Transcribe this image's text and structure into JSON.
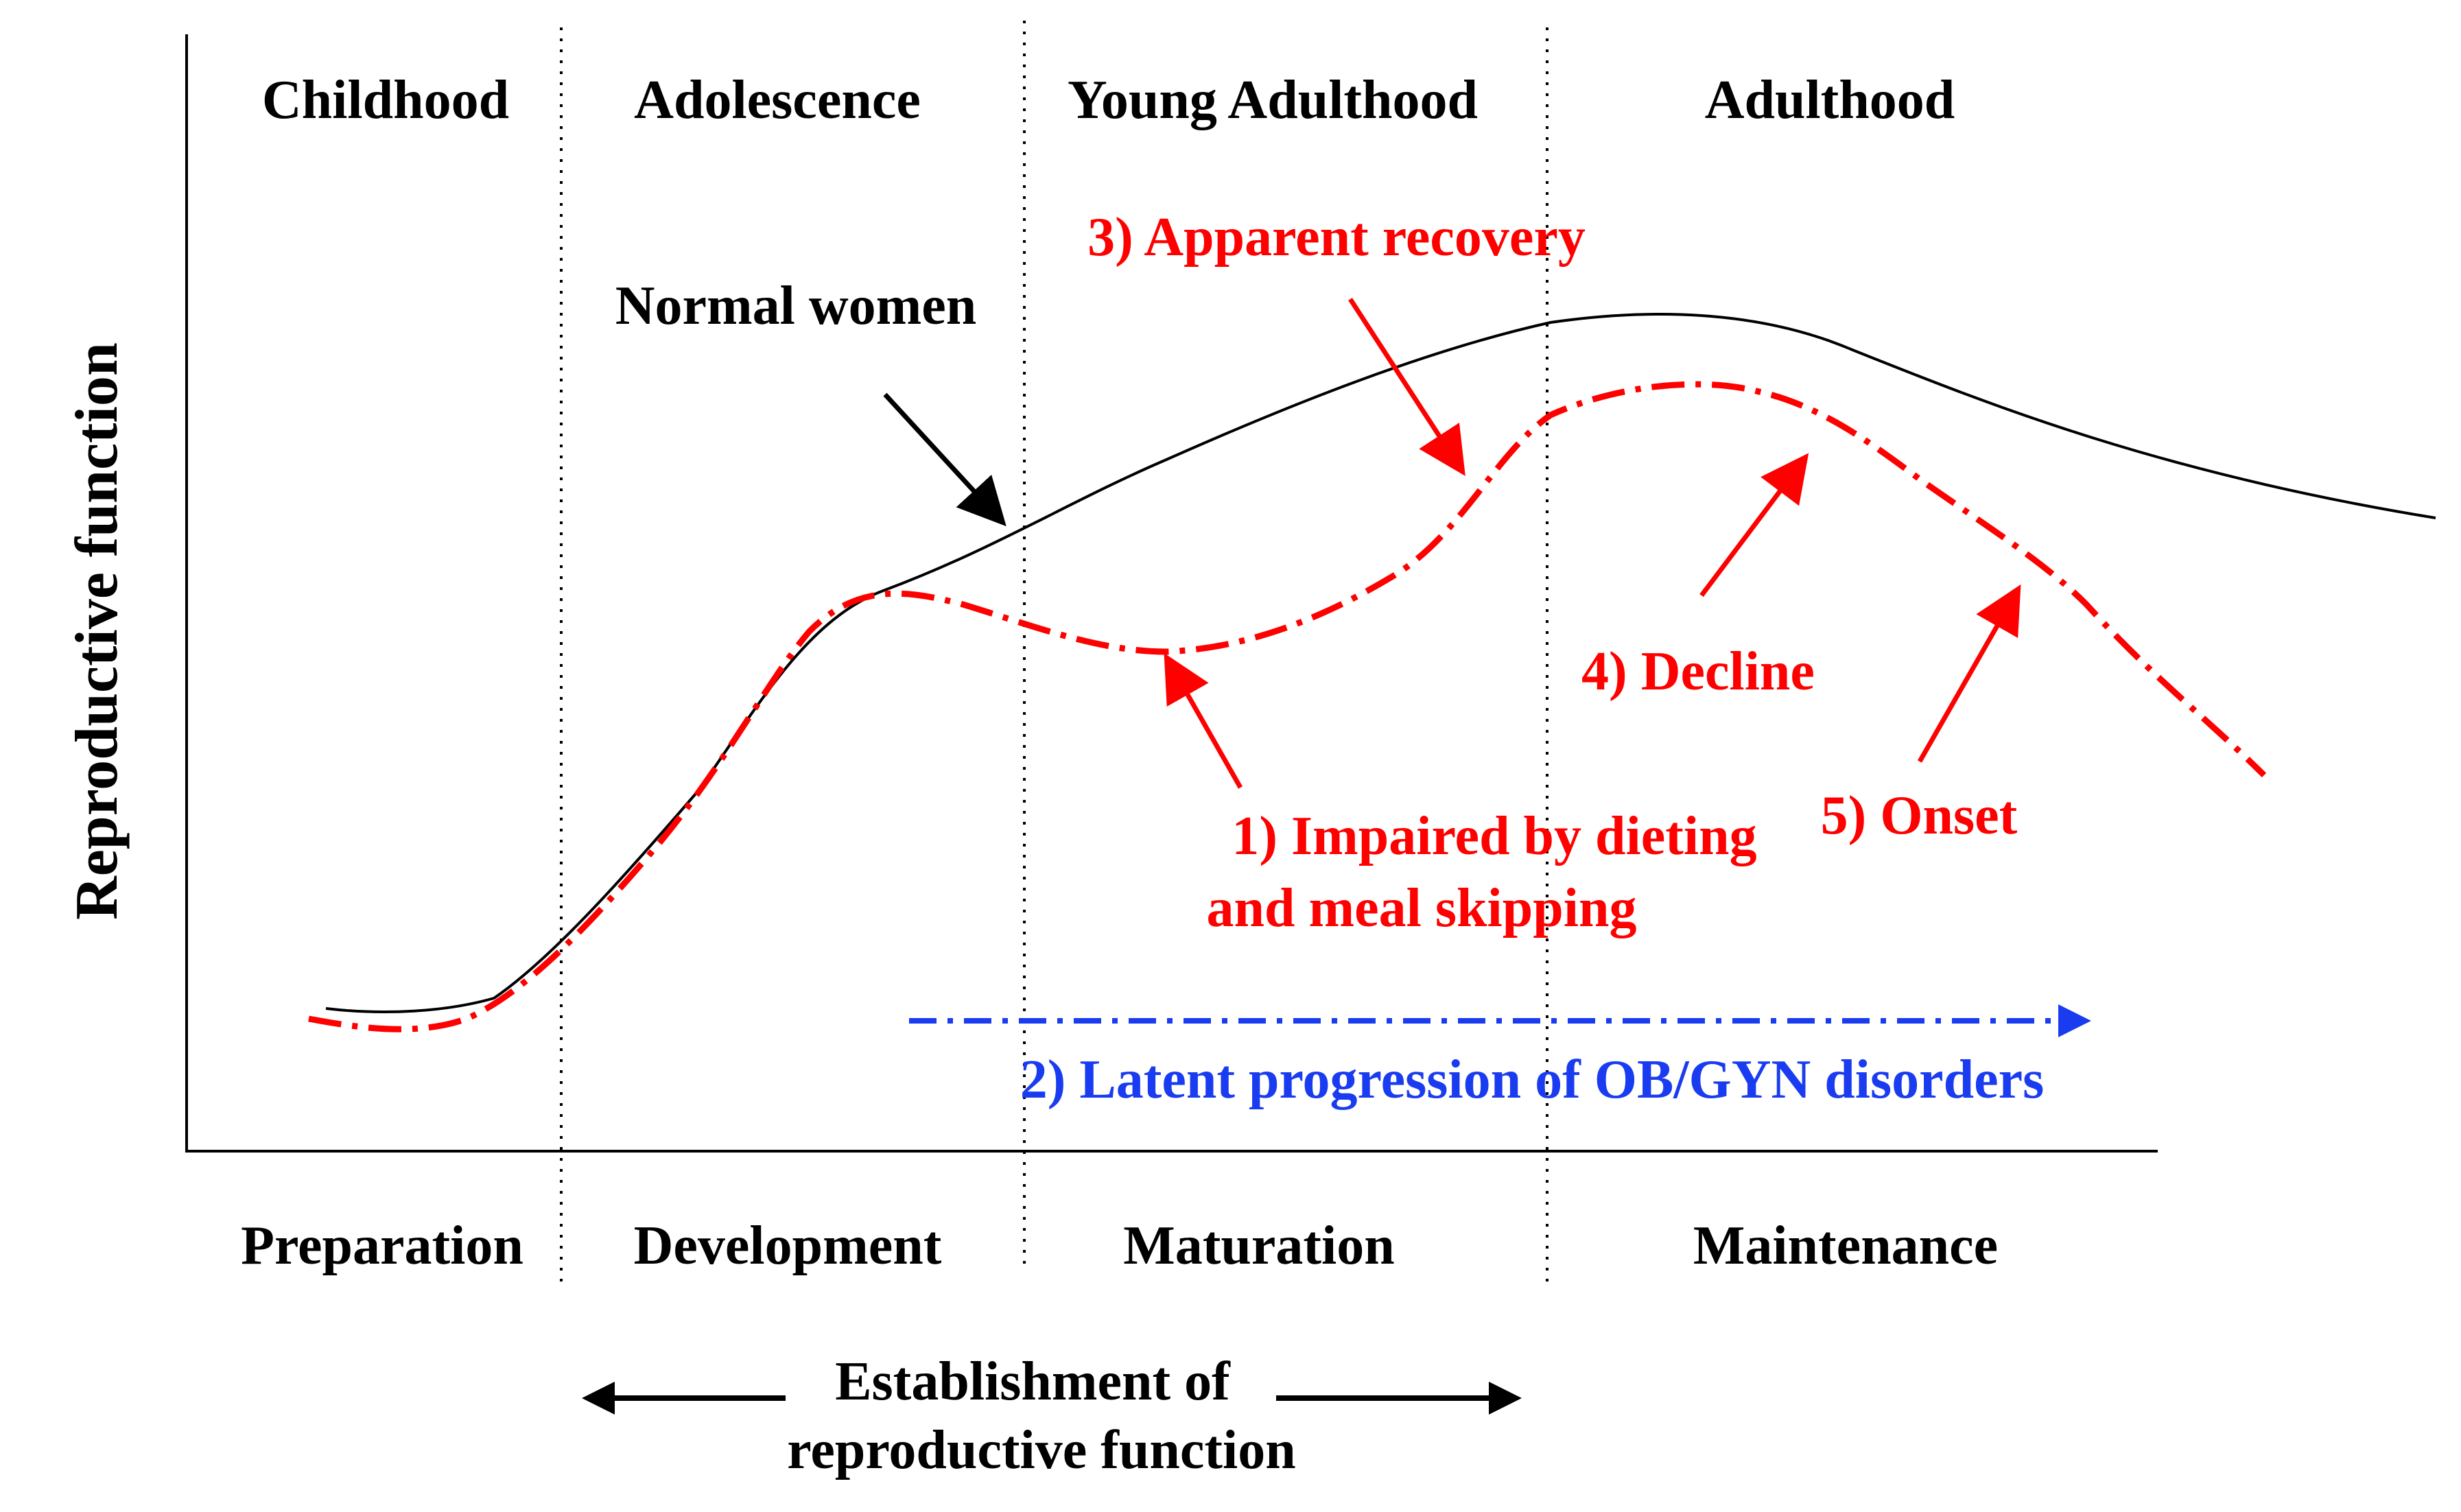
{
  "y_axis_label": "Reproductive function",
  "life_stages": [
    "Childhood",
    "Adolescence",
    "Young Adulthood",
    "Adulthood"
  ],
  "phases": [
    "Preparation",
    "Development",
    "Maturation",
    "Maintenance"
  ],
  "establishment_label": [
    "Establishment of",
    "reproductive function"
  ],
  "normal_curve_label": "Normal women",
  "annotations": {
    "impaired": [
      "1) Impaired by dieting",
      "and meal skipping"
    ],
    "latent": "2) Latent progression of OB/GYN disorders",
    "recovery": "3) Apparent recovery",
    "decline": "4) Decline",
    "onset": "5) Onset"
  },
  "colors": {
    "normal_curve": "#000000",
    "impaired_curve": "#ff0000",
    "latent_arrow": "#1a3cf0",
    "annotation_red": "#ff0000",
    "annotation_blue": "#1a3cf0"
  }
}
